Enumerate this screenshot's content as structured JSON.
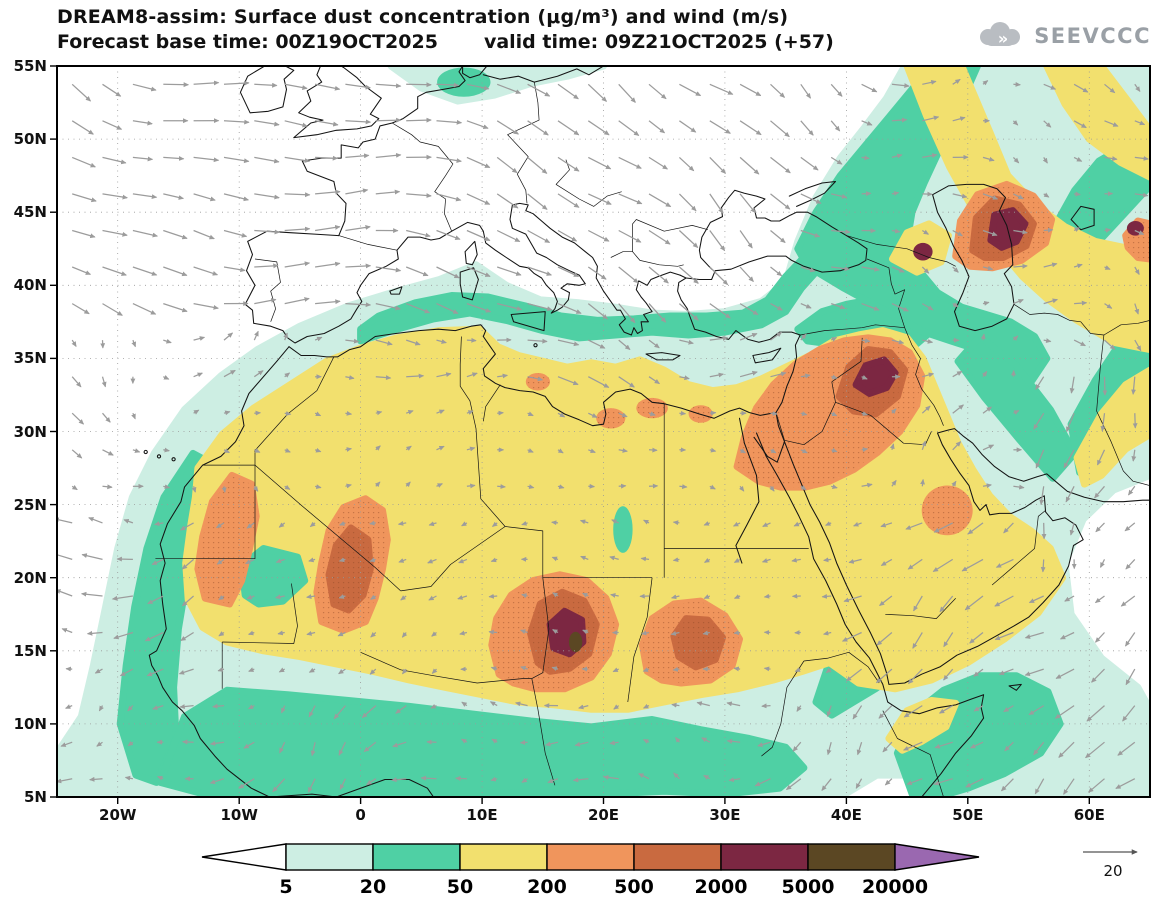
{
  "header": {
    "title": "DREAM8-assim: Surface dust concentration (μg/m³) and wind (m/s)",
    "base_time_label": "Forecast base time: 00Z19OCT2025",
    "valid_time_label": "valid time: 09Z21OCT2025 (+57)",
    "logo_text": "SEEVCCC"
  },
  "chart_data": {
    "type": "heatmap",
    "title": "DREAM8-assim: Surface dust concentration (μg/m³) and wind (m/s)",
    "model": "DREAM8-assim",
    "variable": "Surface dust concentration",
    "units": "μg/m³",
    "wind_variable": "wind",
    "wind_units": "m/s",
    "forecast_base_time": "00Z19OCT2025",
    "valid_time": "09Z21OCT2025",
    "lead_hours": 57,
    "extent": {
      "lon_min": -25,
      "lon_max": 65,
      "lat_min": 5,
      "lat_max": 55
    },
    "levels": [
      5,
      20,
      50,
      200,
      500,
      2000,
      5000,
      20000
    ],
    "level_labels": [
      "5",
      "20",
      "50",
      "200",
      "500",
      "2000",
      "5000",
      "20000"
    ],
    "colors": [
      "#ffffff",
      "#cdeee3",
      "#4fd0a4",
      "#f2e06e",
      "#f0955c",
      "#c96a40",
      "#7c2742",
      "#5b4723",
      "#9a68b0"
    ],
    "colorbar_orientation": "horizontal",
    "grid": {
      "lat_step": 5,
      "lon_step": 10,
      "style": "dotted"
    },
    "wind_reference": 20,
    "lat_ticks": [
      {
        "label": "55N",
        "value": 55
      },
      {
        "label": "50N",
        "value": 50
      },
      {
        "label": "45N",
        "value": 45
      },
      {
        "label": "40N",
        "value": 40
      },
      {
        "label": "35N",
        "value": 35
      },
      {
        "label": "30N",
        "value": 30
      },
      {
        "label": "25N",
        "value": 25
      },
      {
        "label": "20N",
        "value": 20
      },
      {
        "label": "15N",
        "value": 15
      },
      {
        "label": "10N",
        "value": 10
      },
      {
        "label": "5N",
        "value": 5
      }
    ],
    "lon_ticks": [
      {
        "label": "20W",
        "value": -20
      },
      {
        "label": "10W",
        "value": -10
      },
      {
        "label": "0",
        "value": 0
      },
      {
        "label": "10E",
        "value": 10
      },
      {
        "label": "20E",
        "value": 20
      },
      {
        "label": "30E",
        "value": 30
      },
      {
        "label": "40E",
        "value": 40
      },
      {
        "label": "50E",
        "value": 50
      },
      {
        "label": "60E",
        "value": 60
      }
    ]
  }
}
